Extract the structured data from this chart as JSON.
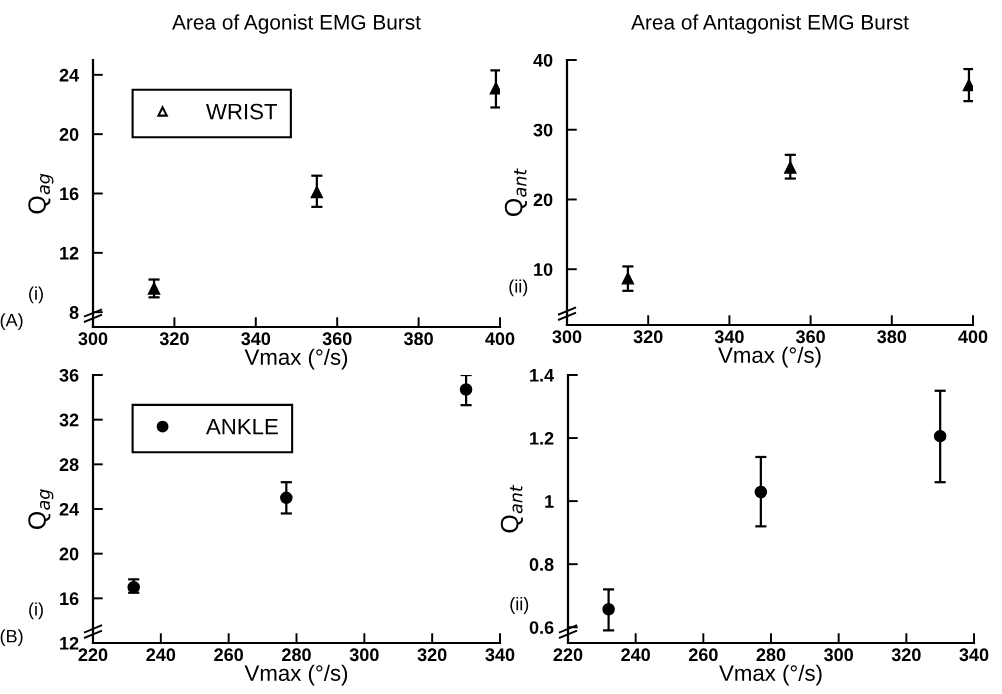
{
  "chart_data": [
    {
      "type": "scatter",
      "title": "Area of Agonist EMG Burst",
      "xlabel": "Vmax (°/s)",
      "ylabel": "Q$_{ag}$",
      "x": [
        315,
        355,
        399
      ],
      "xlim": [
        300,
        400
      ],
      "xticks": [
        300,
        320,
        340,
        360,
        380,
        400
      ],
      "ylim": [
        7,
        25
      ],
      "yticks": [
        8,
        12,
        16,
        20,
        24
      ],
      "marker": "triangle",
      "legend": "top left",
      "grid": false,
      "series": [
        {
          "name": "WRIST",
          "color": "#000000",
          "values": [
            9.6,
            16.1,
            23.1
          ],
          "errors": [
            [
              9.0,
              10.2
            ],
            [
              15.1,
              17.2
            ],
            [
              21.8,
              24.3
            ]
          ]
        }
      ],
      "annotations": [
        "(i)",
        "(A)"
      ]
    },
    {
      "type": "scatter",
      "title": "Area of Antagonist EMG Burst",
      "xlabel": "Vmax (°/s)",
      "ylabel": "Q$_{ant}$",
      "x": [
        315,
        355,
        399
      ],
      "xlim": [
        300,
        400
      ],
      "xticks": [
        300,
        320,
        340,
        360,
        380,
        400
      ],
      "ylim": [
        2,
        40
      ],
      "yticks": [
        10,
        20,
        30,
        40
      ],
      "marker": "triangle",
      "grid": false,
      "series": [
        {
          "color": "#000000",
          "values": [
            8.7,
            24.6,
            36.4
          ],
          "errors": [
            [
              6.9,
              10.4
            ],
            [
              23.0,
              26.4
            ],
            [
              34.1,
              38.7
            ]
          ]
        }
      ],
      "annotations": [
        "(ii)"
      ]
    },
    {
      "type": "scatter",
      "xlabel": "Vmax (°/s)",
      "ylabel": "Q$_{ag}$",
      "x": [
        232,
        277,
        330
      ],
      "xlim": [
        220,
        340
      ],
      "xticks": [
        220,
        240,
        260,
        280,
        300,
        320,
        340
      ],
      "ylim": [
        12,
        36
      ],
      "yticks": [
        12,
        16,
        20,
        24,
        28,
        32,
        36
      ],
      "marker": "circle",
      "legend": "top left",
      "grid": false,
      "series": [
        {
          "name": "ANKLE",
          "color": "#000000",
          "values": [
            17.0,
            25.0,
            34.7
          ],
          "errors": [
            [
              16.5,
              17.7
            ],
            [
              23.6,
              26.4
            ],
            [
              33.3,
              36.0
            ]
          ]
        }
      ],
      "annotations": [
        "(i)",
        "(B)"
      ]
    },
    {
      "type": "scatter",
      "xlabel": "Vmax (°/s)",
      "ylabel": "Q$_{ant}$",
      "x": [
        232,
        277,
        330
      ],
      "xlim": [
        220,
        340
      ],
      "xticks": [
        220,
        240,
        260,
        280,
        300,
        320,
        340
      ],
      "ylim": [
        0.55,
        1.4
      ],
      "yticks": [
        0.6,
        0.8,
        1,
        1.2,
        1.4
      ],
      "marker": "circle",
      "grid": false,
      "series": [
        {
          "color": "#000000",
          "values": [
            0.657,
            1.029,
            1.206
          ],
          "errors": [
            [
              0.59,
              0.72
            ],
            [
              0.92,
              1.14
            ],
            [
              1.06,
              1.35
            ]
          ]
        }
      ],
      "annotations": [
        "(ii)"
      ]
    }
  ]
}
